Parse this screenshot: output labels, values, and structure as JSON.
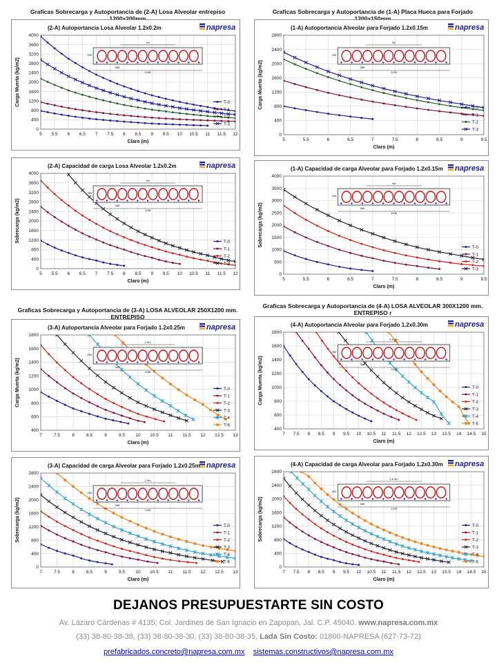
{
  "section_titles": {
    "top_left": "Graficas Sobrecarga y Autoportancia de (2-A) Losa Alveolar entrepiso 1200x200mm",
    "top_right": "Graficas Sobrecarga y Autoportancia de (1-A) Placa Hueca para Forjado 1200x150mm",
    "mid_left": "Graficas Sobrecarga y Autoportancia de (3-A) LOSA ALVEOLAR 250X1200 mm. ENTREPISO",
    "mid_right": "Graficas Sobrecarga y Autoportancia de (4-A) LOSA ALVEOLAR 300X1200 mm. ENTREPISO r"
  },
  "brand": "napresa",
  "colors": {
    "T-0": "#1c1c8c",
    "T-1": "#7a0f3c",
    "T-2": "#c81e1e",
    "T-3": "#202030",
    "T-4": "#3aa0c8",
    "T-6": "#e8862a",
    "T-2_dark": "#2a5a2a"
  },
  "footer": {
    "title": "DEJANOS PRESUPUESTARTE SIN COSTO",
    "address": "Av. Lázaro Cárdenas # 4135; Col. Jardines de San Ignacio en Zapopan, Jal. C.P. 45040.",
    "web": "www.napresa.com.mx",
    "phones": "(33) 38-80-38-38, (33) 38-80-38-30, (33) 38-80-38-35,",
    "free_label": "Lada Sin Costo:",
    "free_number": "01800-NAPRESA (627-73-72)",
    "email1": "prefabricados.concreto@napresa.com.mx",
    "email2": "sistemas.constructivos@napresa.com.mx"
  },
  "chart_data": [
    {
      "id": "c1",
      "type": "line",
      "title": "(2-A) Autoportancia Losa Alveolar 1.2x0.2m",
      "xlabel": "Claro (m)",
      "ylabel": "Carga Muerta (kg/m2)",
      "xlim": [
        5,
        12
      ],
      "ylim": [
        0,
        4000
      ],
      "xstep": 0.5,
      "ystep": 400,
      "section": {
        "dims": [
          "2m",
          "200",
          "588",
          "1198"
        ]
      },
      "series": [
        {
          "name": "T-0",
          "color": "#1c1c8c",
          "x": [
            5,
            6,
            7,
            8,
            9,
            10,
            11
          ],
          "y": [
            780,
            570,
            420,
            320,
            240,
            190,
            150
          ]
        },
        {
          "name": "T-1",
          "color": "#7a0f3c",
          "x": [
            5,
            6,
            7,
            8,
            9,
            10,
            11,
            12
          ],
          "y": [
            1150,
            900,
            720,
            590,
            490,
            420,
            370,
            330
          ]
        },
        {
          "name": "T-2",
          "color": "#2a5a2a",
          "x": [
            5,
            6,
            7,
            8,
            9,
            10,
            11,
            12
          ],
          "y": [
            2150,
            1650,
            1300,
            1030,
            830,
            680,
            560,
            470
          ]
        },
        {
          "name": "T-3",
          "color": "#1c1c8c",
          "x": [
            5,
            6,
            7,
            8,
            9,
            10,
            11,
            12
          ],
          "y": [
            2950,
            2250,
            1750,
            1380,
            1100,
            900,
            740,
            620
          ]
        },
        {
          "name": "",
          "color": "#1c1c8c",
          "x": [
            5,
            6,
            7,
            8,
            9,
            10,
            11,
            12
          ],
          "y": [
            3950,
            3000,
            2320,
            1820,
            1440,
            1160,
            940,
            770
          ]
        }
      ],
      "legend": [
        "T-0",
        "T-1",
        "T-2",
        "T-3"
      ]
    },
    {
      "id": "c2",
      "type": "line",
      "title": "(1-A) Autoportancia Alveolar para Forjado 1.2x0.15m",
      "xlabel": "Claro (m)",
      "ylabel": "Carga Muerta (kg/m2)",
      "xlim": [
        5,
        9.5
      ],
      "ylim": [
        0,
        2800
      ],
      "xstep": 0.5,
      "ystep": 400,
      "section": {
        "dims": [
          "3m",
          "150",
          "588",
          "1198"
        ]
      },
      "series": [
        {
          "name": "T-0",
          "color": "#1c1c8c",
          "x": [
            5,
            5.5,
            6,
            6.5,
            7
          ],
          "y": [
            800,
            690,
            590,
            510,
            440
          ]
        },
        {
          "name": "T-1",
          "color": "#7a0f3c",
          "x": [
            5,
            6,
            7,
            8,
            9,
            9.5
          ],
          "y": [
            1520,
            1180,
            930,
            740,
            590,
            530
          ]
        },
        {
          "name": "T-2",
          "color": "#2a5a2a",
          "x": [
            5,
            6,
            7,
            8,
            9,
            9.5
          ],
          "y": [
            2120,
            1620,
            1250,
            970,
            760,
            680
          ]
        },
        {
          "name": "T-3",
          "color": "#1c1c8c",
          "x": [
            5,
            6,
            7,
            8,
            9,
            9.5
          ],
          "y": [
            2320,
            1780,
            1380,
            1080,
            860,
            760
          ]
        }
      ],
      "legend": [
        "T-0",
        "T-1",
        "T-2",
        "T-3"
      ]
    },
    {
      "id": "c3",
      "type": "line",
      "title": "(2-A) Capacidad de carga Losa Alveolar 1.2x0.2m",
      "xlabel": "Claro (m)",
      "ylabel": "Sobrecarga (kg/m2)",
      "xlim": [
        5,
        12
      ],
      "ylim": [
        0,
        4000
      ],
      "xstep": 0.5,
      "ystep": 400,
      "section": {
        "dims": [
          "2m",
          "200",
          "588",
          "1198"
        ]
      },
      "series": [
        {
          "name": "T-0",
          "color": "#1c1c8c",
          "x": [
            5,
            6,
            7,
            8
          ],
          "y": [
            1180,
            660,
            340,
            120
          ]
        },
        {
          "name": "T-1",
          "color": "#7a0f3c",
          "x": [
            5,
            6,
            7,
            8,
            9,
            10
          ],
          "y": [
            2600,
            1800,
            1220,
            800,
            460,
            200
          ]
        },
        {
          "name": "T-2",
          "color": "#c81e1e",
          "x": [
            5,
            6,
            7,
            8,
            9,
            10,
            11,
            12
          ],
          "y": [
            3700,
            2650,
            1880,
            1320,
            900,
            580,
            330,
            140
          ]
        },
        {
          "name": "T-3",
          "color": "#202030",
          "x": [
            6,
            7,
            8,
            9,
            10,
            11,
            12
          ],
          "y": [
            3950,
            2750,
            1900,
            1300,
            870,
            560,
            300
          ]
        }
      ],
      "legend": [
        "T-0",
        "T-1",
        "T-2",
        "T-3"
      ]
    },
    {
      "id": "c4",
      "type": "line",
      "title": "(1-A) Capacidad de carga Alveolar para Forjado 1.2x0.15m",
      "xlabel": "Claro (m)",
      "ylabel": "Sobrecarga (kg/m2)",
      "xlim": [
        5,
        9.5
      ],
      "ylim": [
        0,
        4000
      ],
      "xstep": 0.5,
      "ystep": 500,
      "section": {
        "dims": [
          "3m",
          "150",
          "588",
          "1198"
        ]
      },
      "series": [
        {
          "name": "T-0",
          "color": "#1c1c8c",
          "x": [
            5,
            5.5,
            6,
            6.5,
            7
          ],
          "y": [
            950,
            620,
            400,
            230,
            130
          ]
        },
        {
          "name": "T-1",
          "color": "#7a0f3c",
          "x": [
            5,
            6,
            7,
            8,
            8.5
          ],
          "y": [
            1950,
            1150,
            650,
            330,
            210
          ]
        },
        {
          "name": "T-2",
          "color": "#c81e1e",
          "x": [
            5,
            6,
            7,
            8,
            9,
            9.5
          ],
          "y": [
            2800,
            1760,
            1100,
            680,
            410,
            330
          ]
        },
        {
          "name": "T-3",
          "color": "#202030",
          "x": [
            5,
            6,
            7,
            8,
            9,
            9.5
          ],
          "y": [
            3450,
            2400,
            1650,
            1100,
            750,
            600
          ]
        }
      ],
      "legend": [
        "T-0",
        "T-1",
        "T-2",
        "T-3"
      ]
    },
    {
      "id": "c5",
      "type": "line",
      "title": "(3-A) Autoportancia Alveolar para Forjado 1.2x0.25m",
      "xlabel": "Claro (m)",
      "ylabel": "Carga Muerta (kg/m2)",
      "xlim": [
        7,
        13
      ],
      "ylim": [
        400,
        1800
      ],
      "xstep": 0.5,
      "ystep": 200,
      "section": {
        "dims": [
          "2.5m",
          "250",
          "588",
          "1198"
        ]
      },
      "series": [
        {
          "name": "T-0",
          "color": "#1c1c8c",
          "x": [
            7,
            8,
            9,
            9.7
          ],
          "y": [
            960,
            720,
            570,
            500
          ]
        },
        {
          "name": "T-1",
          "color": "#7a0f3c",
          "x": [
            7,
            8,
            9,
            10,
            10.2
          ],
          "y": [
            1300,
            940,
            700,
            540,
            520
          ]
        },
        {
          "name": "T-2",
          "color": "#c81e1e",
          "x": [
            7,
            8,
            9,
            10,
            10.8
          ],
          "y": [
            1650,
            1180,
            860,
            640,
            530
          ]
        },
        {
          "name": "T-3",
          "color": "#202030",
          "x": [
            7.5,
            8,
            9,
            10,
            11,
            11.5
          ],
          "y": [
            1800,
            1540,
            1110,
            810,
            620,
            540
          ]
        },
        {
          "name": "T-4",
          "color": "#3aa0c8",
          "x": [
            8.5,
            9,
            10,
            11,
            11.7
          ],
          "y": [
            1800,
            1540,
            1080,
            760,
            560
          ]
        },
        {
          "name": "T-6",
          "color": "#e8862a",
          "x": [
            9.3,
            10,
            11,
            12,
            12.7
          ],
          "y": [
            1800,
            1480,
            1080,
            780,
            560
          ]
        }
      ],
      "legend": [
        "T-0",
        "T-1",
        "T-2",
        "T-3",
        "T-4",
        "T-6"
      ]
    },
    {
      "id": "c6",
      "type": "line",
      "title": "(4-A) Autoportancia Alveolar para Forjado 1.2x0.30m",
      "xlabel": "Claro (m)",
      "ylabel": "Carga Muerta (kg/m2)",
      "xlim": [
        7,
        15
      ],
      "ylim": [
        400,
        1800
      ],
      "xstep": 0.5,
      "ystep": 200,
      "section": {
        "dims": [
          "2.6.3m",
          "300",
          "588",
          "1198"
        ]
      },
      "series": [
        {
          "name": "T-0",
          "color": "#1c1c8c",
          "x": [
            7,
            8,
            9,
            10,
            10.5
          ],
          "y": [
            1600,
            1120,
            800,
            590,
            510
          ]
        },
        {
          "name": "T-1",
          "color": "#7a0f3c",
          "x": [
            7.5,
            8,
            9,
            10,
            11,
            11.6
          ],
          "y": [
            1800,
            1560,
            1120,
            820,
            620,
            530
          ]
        },
        {
          "name": "T-2",
          "color": "#c81e1e",
          "x": [
            8.3,
            9,
            10,
            11,
            12,
            12.3
          ],
          "y": [
            1800,
            1450,
            1060,
            780,
            580,
            530
          ]
        },
        {
          "name": "T-3",
          "color": "#202030",
          "x": [
            9.2,
            10,
            11,
            12,
            13,
            13.3
          ],
          "y": [
            1800,
            1460,
            1070,
            790,
            590,
            550
          ]
        },
        {
          "name": "T-4",
          "color": "#3aa0c8",
          "x": [
            10.3,
            11,
            12,
            13,
            13.6
          ],
          "y": [
            1800,
            1460,
            1080,
            790,
            480
          ]
        },
        {
          "name": "T-6",
          "color": "#e8862a",
          "x": [
            11.2,
            12,
            13,
            14,
            14.4
          ],
          "y": [
            1800,
            1450,
            1040,
            720,
            480
          ]
        }
      ],
      "legend": [
        "T-0",
        "T-1",
        "T-2",
        "T-3",
        "T-4",
        "T-6"
      ]
    },
    {
      "id": "c7",
      "type": "line",
      "title": "(3-A) Capacidad de carga Alveolar para Forjado 1.2x0.25m",
      "xlabel": "Claro (m)",
      "ylabel": "Sobrecarga (kg/m2)",
      "xlim": [
        7,
        13
      ],
      "ylim": [
        0,
        2800
      ],
      "xstep": 0.5,
      "ystep": 400,
      "section": {
        "dims": [
          "2.5m",
          "250",
          "588",
          "1198"
        ]
      },
      "series": [
        {
          "name": "T-0",
          "color": "#1c1c8c",
          "x": [
            7,
            8,
            9,
            9.2
          ],
          "y": [
            680,
            340,
            110,
            80
          ]
        },
        {
          "name": "T-1",
          "color": "#7a0f3c",
          "x": [
            7,
            8,
            9,
            10,
            10.6
          ],
          "y": [
            1230,
            760,
            440,
            220,
            120
          ]
        },
        {
          "name": "T-2",
          "color": "#c81e1e",
          "x": [
            7,
            8,
            9,
            10,
            11,
            11.8
          ],
          "y": [
            1660,
            1100,
            700,
            420,
            210,
            120
          ]
        },
        {
          "name": "T-3",
          "color": "#202030",
          "x": [
            7,
            8,
            9,
            10,
            11,
            12,
            12.6
          ],
          "y": [
            2150,
            1480,
            1000,
            660,
            420,
            240,
            160
          ]
        },
        {
          "name": "T-4",
          "color": "#3aa0c8",
          "x": [
            7,
            8,
            9,
            10,
            11,
            12,
            13
          ],
          "y": [
            2650,
            1880,
            1320,
            920,
            620,
            400,
            260
          ]
        },
        {
          "name": "T-6",
          "color": "#e8862a",
          "x": [
            7.5,
            8,
            9,
            10,
            11,
            12,
            13
          ],
          "y": [
            2800,
            2400,
            1740,
            1260,
            900,
            640,
            480
          ]
        }
      ],
      "legend": [
        "T-0",
        "T-1",
        "T-2",
        "T-3",
        "T-4",
        "T-6"
      ]
    },
    {
      "id": "c8",
      "type": "line",
      "title": "(4-A) Capacidad de carga Alveolar para Forjado 1.2x0.30m",
      "xlabel": "Claro (m)",
      "ylabel": "Sobrecarga (kg/m2)",
      "xlim": [
        7,
        15
      ],
      "ylim": [
        0,
        2800
      ],
      "xstep": 0.5,
      "ystep": 400,
      "section": {
        "dims": [
          "2.6.3m",
          "300",
          "588",
          "1198"
        ]
      },
      "series": [
        {
          "name": "T-0",
          "color": "#1c1c8c",
          "x": [
            7,
            8,
            9,
            10
          ],
          "y": [
            820,
            440,
            200,
            60
          ]
        },
        {
          "name": "T-1",
          "color": "#7a0f3c",
          "x": [
            7,
            8,
            9,
            10,
            11,
            11.6
          ],
          "y": [
            1460,
            930,
            580,
            330,
            160,
            80
          ]
        },
        {
          "name": "T-2",
          "color": "#c81e1e",
          "x": [
            7,
            8,
            9,
            10,
            11,
            12,
            12.4
          ],
          "y": [
            2080,
            1400,
            920,
            590,
            360,
            200,
            150
          ]
        },
        {
          "name": "T-3",
          "color": "#202030",
          "x": [
            7,
            8,
            9,
            10,
            11,
            12,
            13,
            13.6
          ],
          "y": [
            2600,
            1820,
            1250,
            850,
            560,
            350,
            210,
            140
          ]
        },
        {
          "name": "T-4",
          "color": "#3aa0c8",
          "x": [
            7.3,
            8,
            9,
            10,
            11,
            12,
            13,
            14,
            14.5
          ],
          "y": [
            2800,
            2280,
            1630,
            1160,
            820,
            560,
            380,
            240,
            180
          ]
        },
        {
          "name": "T-6",
          "color": "#e8862a",
          "x": [
            7.7,
            8,
            9,
            10,
            11,
            12,
            13,
            14,
            15
          ],
          "y": [
            2800,
            2660,
            1980,
            1470,
            1090,
            800,
            590,
            430,
            310
          ]
        }
      ],
      "legend": [
        "T-0",
        "T-1",
        "T-2",
        "T-3",
        "T-4",
        "T-6"
      ]
    }
  ]
}
